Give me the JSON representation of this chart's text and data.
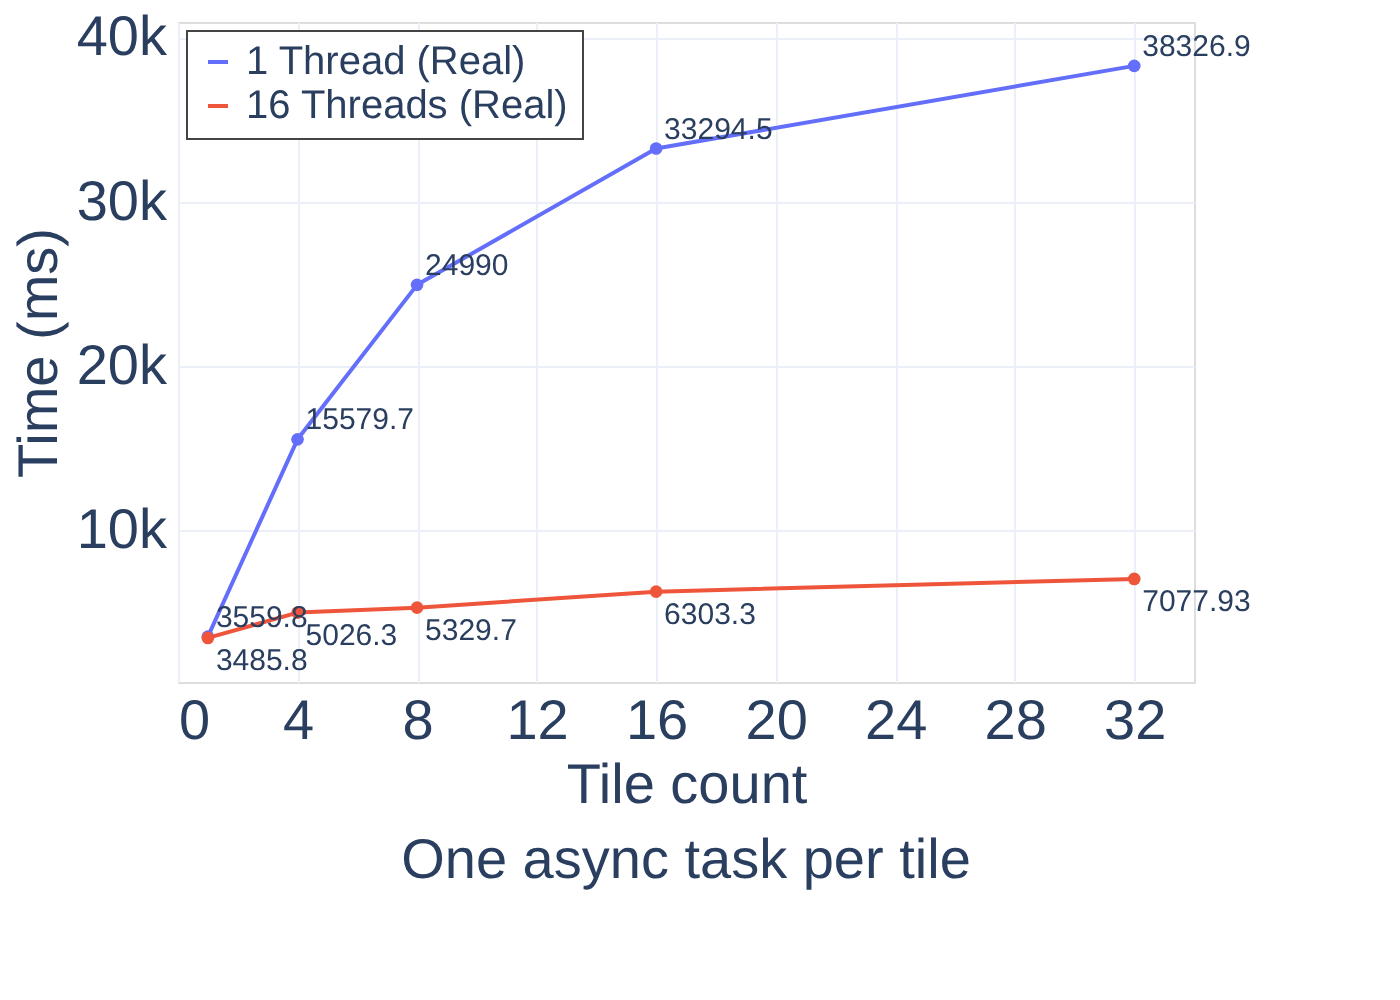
{
  "chart_data": {
    "type": "line",
    "xlabel": "Tile count",
    "ylabel": "Time (ms)",
    "annotations": [
      "One async task per tile"
    ],
    "xlim": [
      0,
      34
    ],
    "xticks": [
      0,
      4,
      8,
      12,
      16,
      20,
      24,
      28,
      32
    ],
    "ylim": [
      800,
      41000
    ],
    "yticks": [
      {
        "value": 10000,
        "label": "10k"
      },
      {
        "value": 20000,
        "label": "20k"
      },
      {
        "value": 30000,
        "label": "30k"
      },
      {
        "value": 40000,
        "label": "40k"
      }
    ],
    "series": [
      {
        "name": "1 Thread (Real)",
        "color": "#636efa",
        "x": [
          1,
          4,
          8,
          16,
          32
        ],
        "values": [
          3559.8,
          15579.7,
          24990,
          33294.5,
          38326.9
        ]
      },
      {
        "name": "16 Threads (Real)",
        "color": "#ef553b",
        "x": [
          1,
          4,
          8,
          16,
          32
        ],
        "values": [
          3485.8,
          5026.3,
          5329.7,
          6303.3,
          7077.93
        ]
      }
    ],
    "data_labels": true,
    "grid": true,
    "legend": "top left",
    "marker": "circle",
    "line_style": "solid"
  }
}
